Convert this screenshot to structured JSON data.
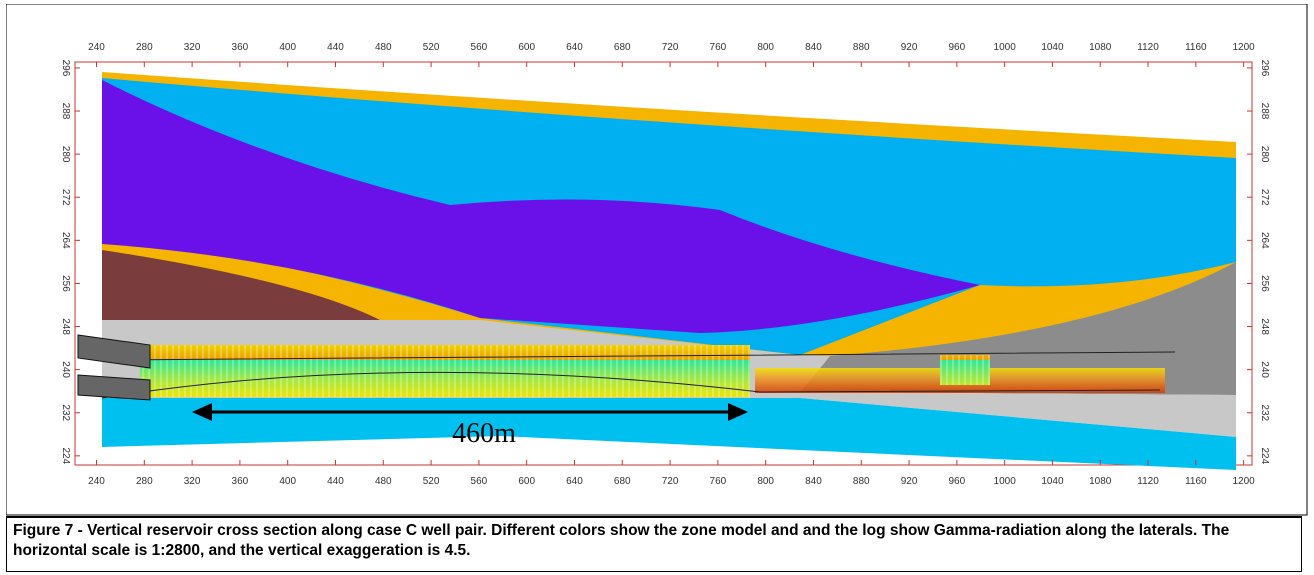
{
  "chart_data": {
    "type": "cross-section",
    "xlim": [
      222,
      1207
    ],
    "ylim": [
      222.3,
      297.1
    ],
    "xticks": [
      240,
      280,
      320,
      360,
      400,
      440,
      480,
      520,
      560,
      600,
      640,
      680,
      720,
      760,
      800,
      840,
      880,
      920,
      960,
      1000,
      1040,
      1080,
      1120,
      1160,
      1200
    ],
    "yticks": [
      224,
      232,
      240,
      248,
      256,
      264,
      272,
      280,
      288,
      296
    ],
    "annotation": "460m"
  },
  "caption": "Figure 7 - Vertical reservoir cross section along case C well pair. Different colors show the zone model and and the log show Gamma-radiation along the laterals. The horizontal scale is 1:2800, and the vertical exaggeration is 4.5."
}
